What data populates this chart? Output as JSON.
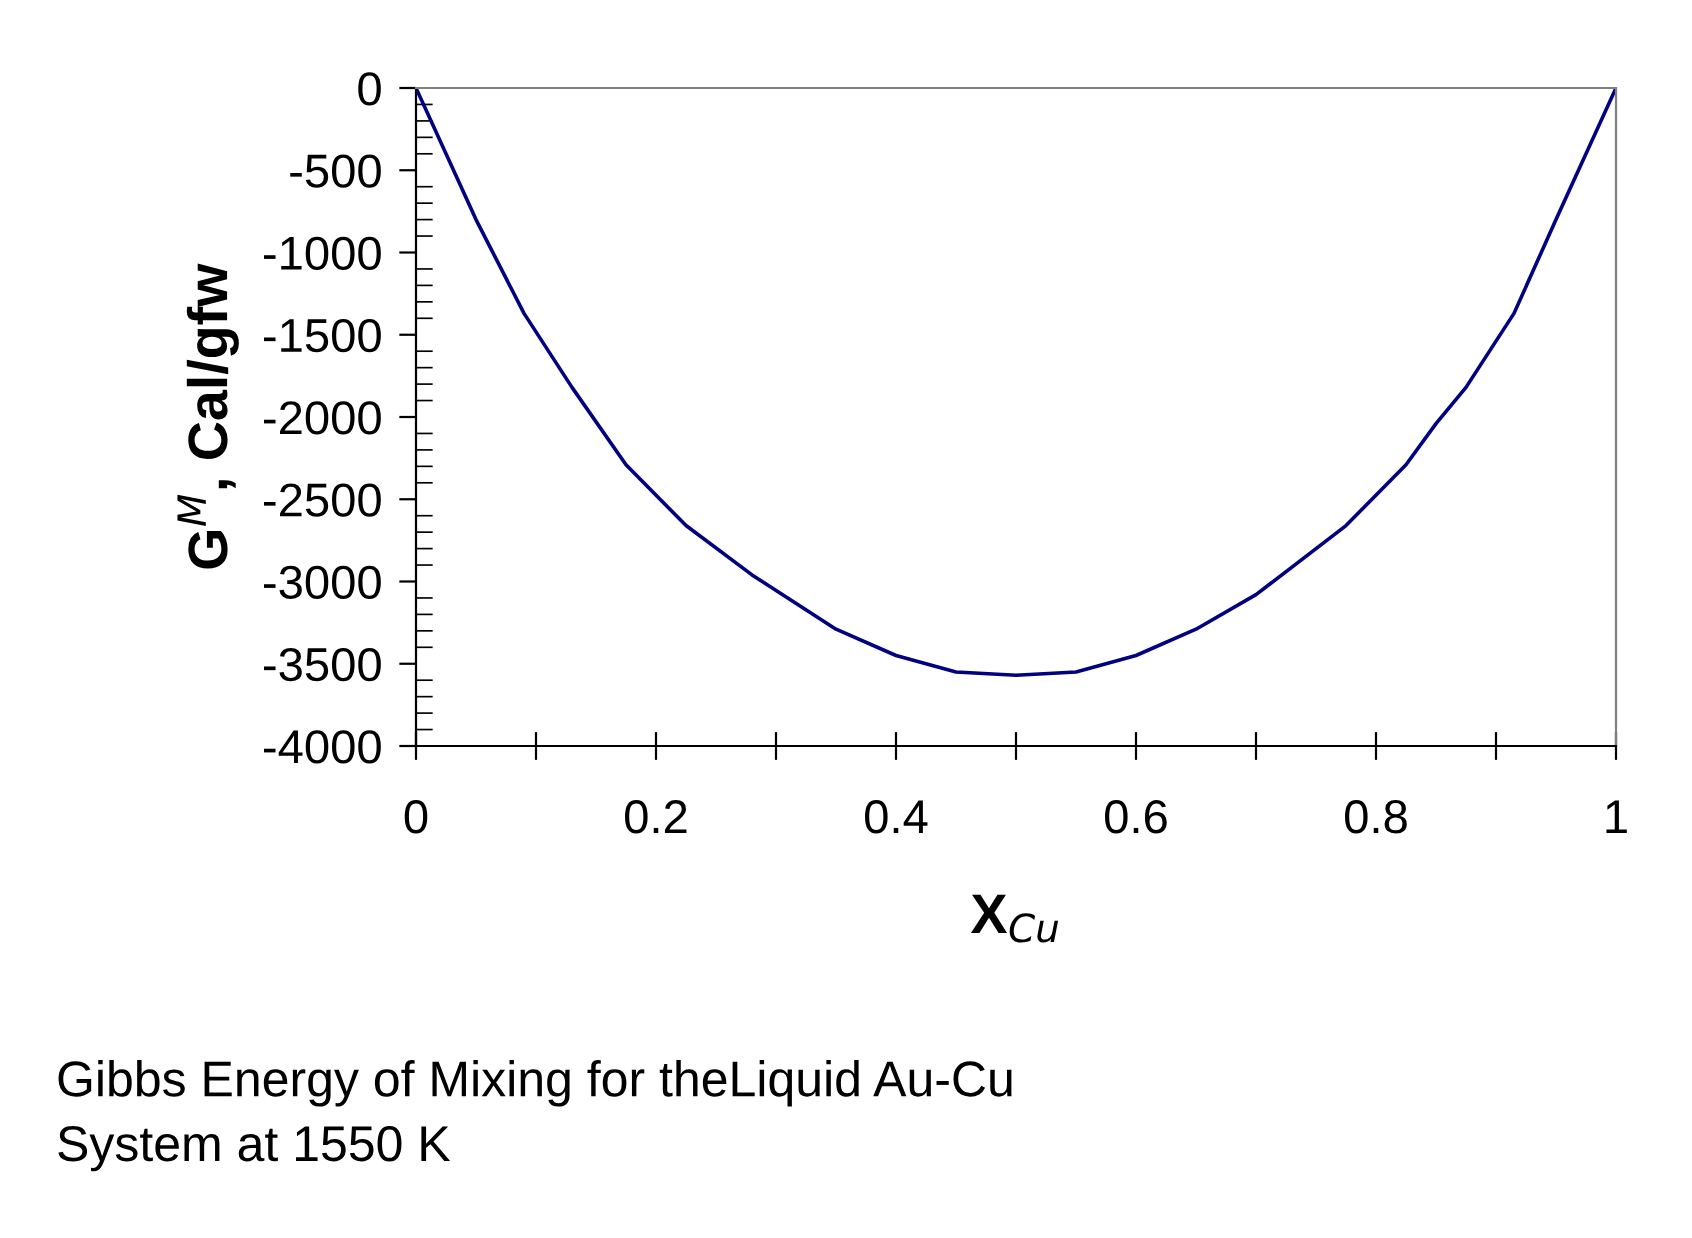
{
  "chart_data": {
    "type": "line",
    "xlabel": "X$_{Cu}$",
    "ylabel": "G$^{M}$, Cal/gfw",
    "annotations": [
      "Gibbs Energy of Mixing for theLiquid Au-Cu\nSystem at 1550 K"
    ],
    "x": [
      0,
      0.05,
      0.09,
      0.13,
      0.175,
      0.225,
      0.28,
      0.35,
      0.4,
      0.45,
      0.5,
      0.55,
      0.6,
      0.65,
      0.7,
      0.775,
      0.825,
      0.85,
      0.875,
      0.915,
      0.95,
      1
    ],
    "series": [
      {
        "color": "#000080",
        "values": [
          0,
          -800,
          -1370,
          -1820,
          -2290,
          -2660,
          -2960,
          -3290,
          -3450,
          -3550,
          -3570,
          -3550,
          -3450,
          -3290,
          -3080,
          -2660,
          -2290,
          -2040,
          -1820,
          -1370,
          -800,
          0
        ]
      }
    ],
    "xlim": [
      0,
      1
    ],
    "ylim": [
      -4000,
      0
    ],
    "xticks": [
      0,
      {
        "value": 0.1,
        "label": null
      },
      0.2,
      {
        "value": 0.3,
        "label": null
      },
      0.4,
      {
        "value": 0.5,
        "label": null
      },
      0.6,
      {
        "value": 0.7,
        "label": null
      },
      0.8,
      {
        "value": 0.9,
        "label": null
      },
      1
    ],
    "yticks": [
      -4000,
      -3500,
      -3000,
      -2500,
      -2000,
      -1500,
      -1000,
      -500,
      0
    ],
    "grid": false,
    "legend": false,
    "marker": "none",
    "line_style": "solid"
  }
}
